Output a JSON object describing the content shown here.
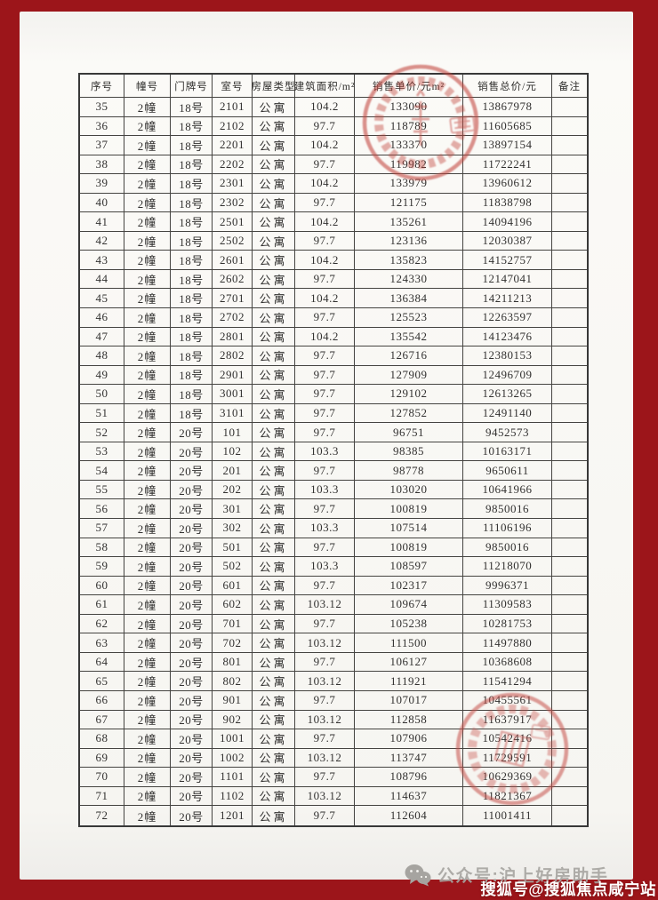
{
  "colors": {
    "frame_red": "#9c151a",
    "paper": "#f8f7f3",
    "seal_red": "#c2453e",
    "table_line": "#454441"
  },
  "table": {
    "headers": [
      "序号",
      "幢号",
      "门牌号",
      "室号",
      "房屋类型",
      "建筑面积/m²",
      "销售单价/元m²",
      "销售总价/元",
      "备注"
    ],
    "rows": [
      [
        "35",
        "2幢",
        "18号",
        "2101",
        "公寓",
        "104.2",
        "133090",
        "13867978",
        ""
      ],
      [
        "36",
        "2幢",
        "18号",
        "2102",
        "公寓",
        "97.7",
        "118789",
        "11605685",
        ""
      ],
      [
        "37",
        "2幢",
        "18号",
        "2201",
        "公寓",
        "104.2",
        "133370",
        "13897154",
        ""
      ],
      [
        "38",
        "2幢",
        "18号",
        "2202",
        "公寓",
        "97.7",
        "119982",
        "11722241",
        ""
      ],
      [
        "39",
        "2幢",
        "18号",
        "2301",
        "公寓",
        "104.2",
        "133979",
        "13960612",
        ""
      ],
      [
        "40",
        "2幢",
        "18号",
        "2302",
        "公寓",
        "97.7",
        "121175",
        "11838798",
        ""
      ],
      [
        "41",
        "2幢",
        "18号",
        "2501",
        "公寓",
        "104.2",
        "135261",
        "14094196",
        ""
      ],
      [
        "42",
        "2幢",
        "18号",
        "2502",
        "公寓",
        "97.7",
        "123136",
        "12030387",
        ""
      ],
      [
        "43",
        "2幢",
        "18号",
        "2601",
        "公寓",
        "104.2",
        "135823",
        "14152757",
        ""
      ],
      [
        "44",
        "2幢",
        "18号",
        "2602",
        "公寓",
        "97.7",
        "124330",
        "12147041",
        ""
      ],
      [
        "45",
        "2幢",
        "18号",
        "2701",
        "公寓",
        "104.2",
        "136384",
        "14211213",
        ""
      ],
      [
        "46",
        "2幢",
        "18号",
        "2702",
        "公寓",
        "97.7",
        "125523",
        "12263597",
        ""
      ],
      [
        "47",
        "2幢",
        "18号",
        "2801",
        "公寓",
        "104.2",
        "135542",
        "14123476",
        ""
      ],
      [
        "48",
        "2幢",
        "18号",
        "2802",
        "公寓",
        "97.7",
        "126716",
        "12380153",
        ""
      ],
      [
        "49",
        "2幢",
        "18号",
        "2901",
        "公寓",
        "97.7",
        "127909",
        "12496709",
        ""
      ],
      [
        "50",
        "2幢",
        "18号",
        "3001",
        "公寓",
        "97.7",
        "129102",
        "12613265",
        ""
      ],
      [
        "51",
        "2幢",
        "18号",
        "3101",
        "公寓",
        "97.7",
        "127852",
        "12491140",
        ""
      ],
      [
        "52",
        "2幢",
        "20号",
        "101",
        "公寓",
        "97.7",
        "96751",
        "9452573",
        ""
      ],
      [
        "53",
        "2幢",
        "20号",
        "102",
        "公寓",
        "103.3",
        "98385",
        "10163171",
        ""
      ],
      [
        "54",
        "2幢",
        "20号",
        "201",
        "公寓",
        "97.7",
        "98778",
        "9650611",
        ""
      ],
      [
        "55",
        "2幢",
        "20号",
        "202",
        "公寓",
        "103.3",
        "103020",
        "10641966",
        ""
      ],
      [
        "56",
        "2幢",
        "20号",
        "301",
        "公寓",
        "97.7",
        "100819",
        "9850016",
        ""
      ],
      [
        "57",
        "2幢",
        "20号",
        "302",
        "公寓",
        "103.3",
        "107514",
        "11106196",
        ""
      ],
      [
        "58",
        "2幢",
        "20号",
        "501",
        "公寓",
        "97.7",
        "100819",
        "9850016",
        ""
      ],
      [
        "59",
        "2幢",
        "20号",
        "502",
        "公寓",
        "103.3",
        "108597",
        "11218070",
        ""
      ],
      [
        "60",
        "2幢",
        "20号",
        "601",
        "公寓",
        "97.7",
        "102317",
        "9996371",
        ""
      ],
      [
        "61",
        "2幢",
        "20号",
        "602",
        "公寓",
        "103.12",
        "109674",
        "11309583",
        ""
      ],
      [
        "62",
        "2幢",
        "20号",
        "701",
        "公寓",
        "97.7",
        "105238",
        "10281753",
        ""
      ],
      [
        "63",
        "2幢",
        "20号",
        "702",
        "公寓",
        "103.12",
        "111500",
        "11497880",
        ""
      ],
      [
        "64",
        "2幢",
        "20号",
        "801",
        "公寓",
        "97.7",
        "106127",
        "10368608",
        ""
      ],
      [
        "65",
        "2幢",
        "20号",
        "802",
        "公寓",
        "103.12",
        "111921",
        "11541294",
        ""
      ],
      [
        "66",
        "2幢",
        "20号",
        "901",
        "公寓",
        "97.7",
        "107017",
        "10455561",
        ""
      ],
      [
        "67",
        "2幢",
        "20号",
        "902",
        "公寓",
        "103.12",
        "112858",
        "11637917",
        ""
      ],
      [
        "68",
        "2幢",
        "20号",
        "1001",
        "公寓",
        "97.7",
        "107906",
        "10542416",
        ""
      ],
      [
        "69",
        "2幢",
        "20号",
        "1002",
        "公寓",
        "103.12",
        "113747",
        "11729591",
        ""
      ],
      [
        "70",
        "2幢",
        "20号",
        "1101",
        "公寓",
        "97.7",
        "108796",
        "10629369",
        ""
      ],
      [
        "71",
        "2幢",
        "20号",
        "1102",
        "公寓",
        "103.12",
        "114637",
        "11821367",
        ""
      ],
      [
        "72",
        "2幢",
        "20号",
        "1201",
        "公寓",
        "97.7",
        "112604",
        "11001411",
        ""
      ]
    ]
  },
  "watermark": {
    "wechat_label": "公众号:沪上好房助手",
    "sohu_label": "搜狐号@搜狐焦点咸宁站"
  }
}
